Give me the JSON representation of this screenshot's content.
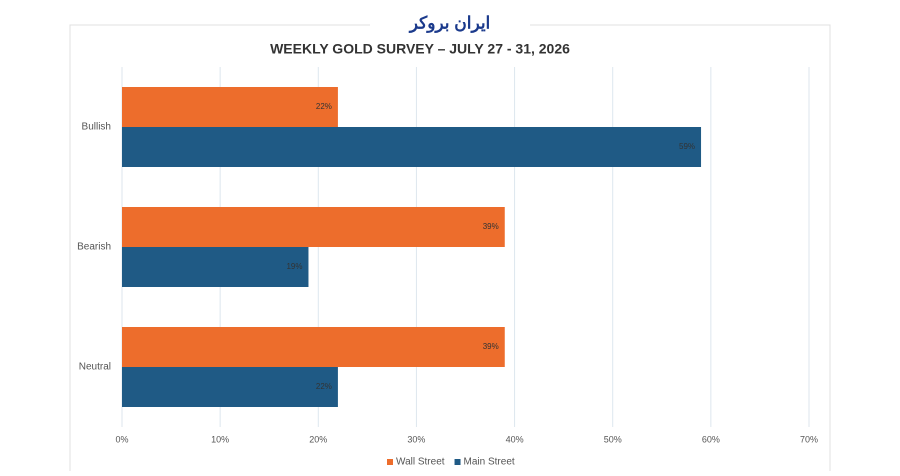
{
  "watermark": "ایران بروکر",
  "chart_data": {
    "type": "bar",
    "orientation": "horizontal",
    "title": "WEEKLY GOLD SURVEY – JULY 27 - 31, 2026",
    "categories": [
      "Bullish",
      "Bearish",
      "Neutral"
    ],
    "series": [
      {
        "name": "Wall Street",
        "color": "#ed6d2c",
        "values": [
          22,
          39,
          39
        ],
        "value_labels": [
          "22%",
          "39%",
          "39%"
        ]
      },
      {
        "name": "Main Street",
        "color": "#1f5a85",
        "values": [
          59,
          19,
          22
        ],
        "value_labels": [
          "59%",
          "19%",
          "22%"
        ]
      }
    ],
    "xlim": [
      0,
      70
    ],
    "xticks": [
      {
        "value": 0,
        "label": "0%"
      },
      {
        "value": 10,
        "label": "10%"
      },
      {
        "value": 20,
        "label": "20%"
      },
      {
        "value": 30,
        "label": "30%"
      },
      {
        "value": 40,
        "label": "40%"
      },
      {
        "value": 50,
        "label": "50%"
      },
      {
        "value": 60,
        "label": "60%"
      },
      {
        "value": 70,
        "label": "70%"
      }
    ],
    "grid": true,
    "legend": "bottom"
  }
}
